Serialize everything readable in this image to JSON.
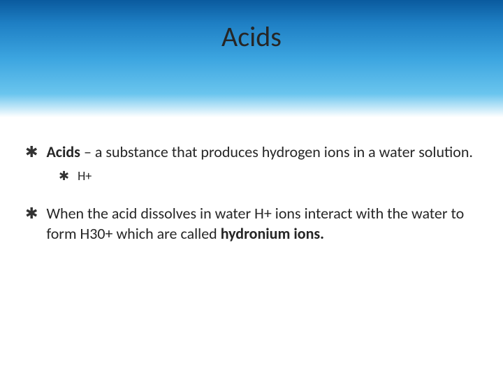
{
  "slide": {
    "title": "Acids",
    "header": {
      "gradient_top": "#0a5a9e",
      "gradient_mid1": "#1e7fc4",
      "gradient_mid2": "#3ca5e0",
      "gradient_mid3": "#6ac5ee",
      "gradient_bottom": "#ffffff",
      "title_color": "#262626",
      "title_fontsize": 40
    },
    "bullets": [
      {
        "level": 1,
        "marker": "✱",
        "runs": [
          {
            "text": "Acids",
            "bold": true
          },
          {
            "text": " – a substance that produces hydrogen ions in a water solution.",
            "bold": false
          }
        ]
      },
      {
        "level": 2,
        "marker": "✱",
        "runs": [
          {
            "text": "H+",
            "bold": false
          }
        ]
      },
      {
        "level": 1,
        "marker": "✱",
        "runs": [
          {
            "text": "When the acid dissolves in water H+ ions interact with the water to form H30+ which are called ",
            "bold": false
          },
          {
            "text": "hydronium ions.",
            "bold": true
          }
        ]
      }
    ],
    "body_fontsize": 22,
    "sub_fontsize": 18,
    "text_color": "#262626",
    "background_color": "#ffffff",
    "bullet_glyph": "✱"
  }
}
